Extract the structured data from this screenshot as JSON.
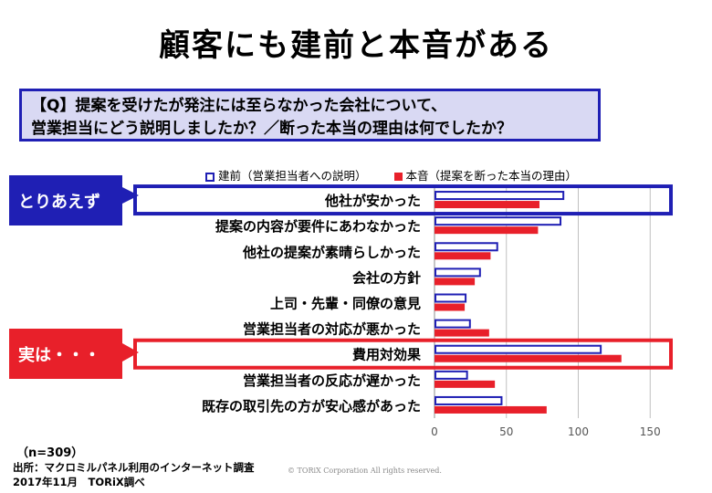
{
  "title": "顧客にも建前と本音がある",
  "question": {
    "line1": "【Q】提案を受けたが発注には至らなかった会社について、",
    "line2": "営業担当にどう説明しましたか？／断った本当の理由は何でしたか？"
  },
  "callouts": {
    "first": "とりあえず",
    "second": "実は・・・"
  },
  "colors": {
    "tatemae": "#1f1fb4",
    "honne": "#e8202a",
    "callout_blue": "#1f1fb4",
    "callout_red": "#e8202a"
  },
  "chart_data": {
    "type": "bar",
    "orientation": "horizontal",
    "categories": [
      "他社が安かった",
      "提案の内容が要件にあわなかった",
      "他社の提案が素晴らしかった",
      "会社の方針",
      "上司・先輩・同僚の意見",
      "営業担当者の対応が悪かった",
      "費用対効果",
      "営業担当者の反応が遅かった",
      "既存の取引先の方が安心感があった"
    ],
    "series": [
      {
        "name": "建前（営業担当者への説明）",
        "values": [
          89,
          87,
          43,
          31,
          21,
          24,
          115,
          22,
          46
        ]
      },
      {
        "name": "本音（提案を断った本当の理由）",
        "values": [
          73,
          72,
          39,
          28,
          21,
          38,
          130,
          42,
          78
        ]
      }
    ],
    "xlim": [
      0,
      160
    ],
    "xticks": [
      0,
      50,
      100,
      150
    ],
    "grid": true,
    "legend": "top",
    "highlighted": [
      "他社が安かった",
      "費用対効果"
    ]
  },
  "footer": {
    "n": "（n=309）",
    "source": "出所：マクロミルパネル利用のインターネット調査",
    "date": "2017年11月　TORiX調べ",
    "copyright": "© TORiX Corporation All rights reserved."
  }
}
